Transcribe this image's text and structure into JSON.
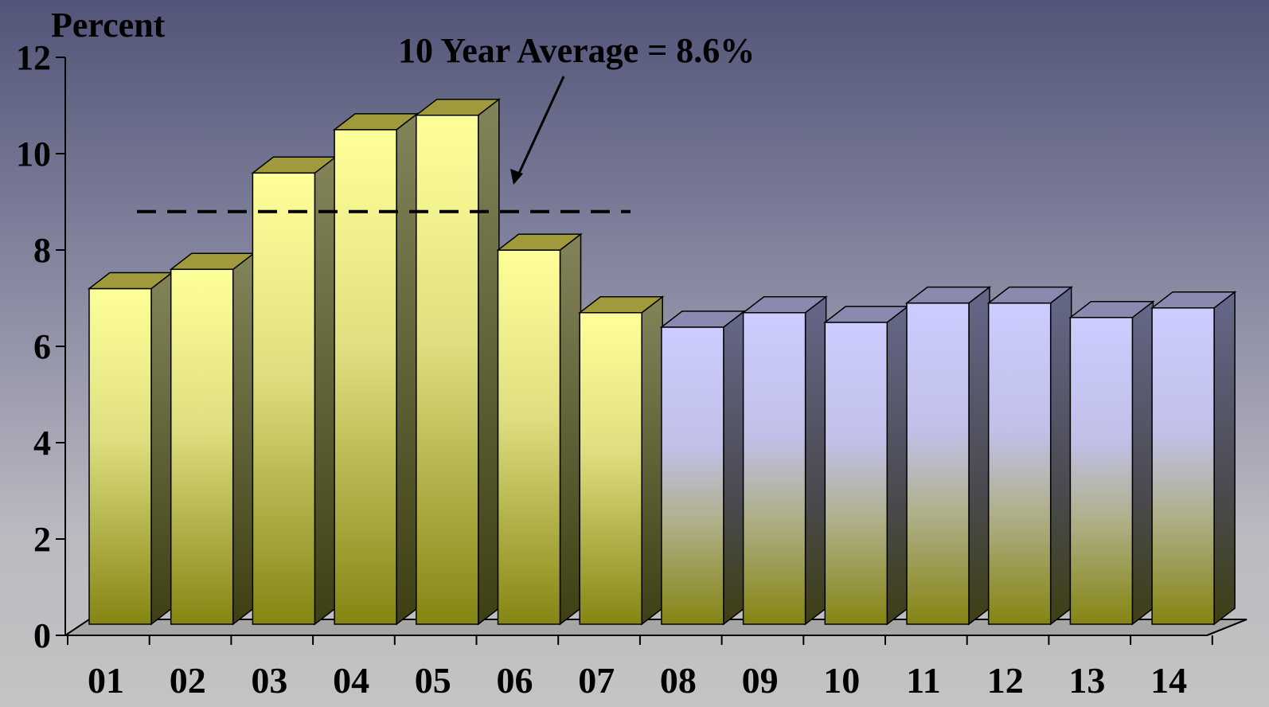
{
  "chart_data": {
    "type": "bar",
    "title": "",
    "ylabel": "Percent",
    "xlabel": "",
    "categories": [
      "01",
      "02",
      "03",
      "04",
      "05",
      "06",
      "07",
      "08",
      "09",
      "10",
      "11",
      "12",
      "13",
      "14"
    ],
    "values": [
      7.0,
      7.4,
      9.4,
      10.3,
      10.6,
      7.8,
      6.5,
      6.2,
      6.5,
      6.3,
      6.7,
      6.7,
      6.4,
      6.6
    ],
    "ylim": [
      0,
      12
    ],
    "yticks": [
      0,
      2,
      4,
      6,
      8,
      10,
      12
    ],
    "grid": false,
    "average_line": {
      "value": 8.6,
      "label": "10 Year Average = 8.6%",
      "style": "dashed"
    },
    "series_colors": {
      "actual": {
        "front_top": "#ffff99",
        "front_bottom": "#858513",
        "side": "#7a7a48",
        "top": "#a09a3c"
      },
      "projected": {
        "front_top": "#ccccff",
        "front_bottom": "#858513",
        "side": "#5c5e7c",
        "top": "#8a8ab0"
      }
    },
    "actual_count": 7
  }
}
